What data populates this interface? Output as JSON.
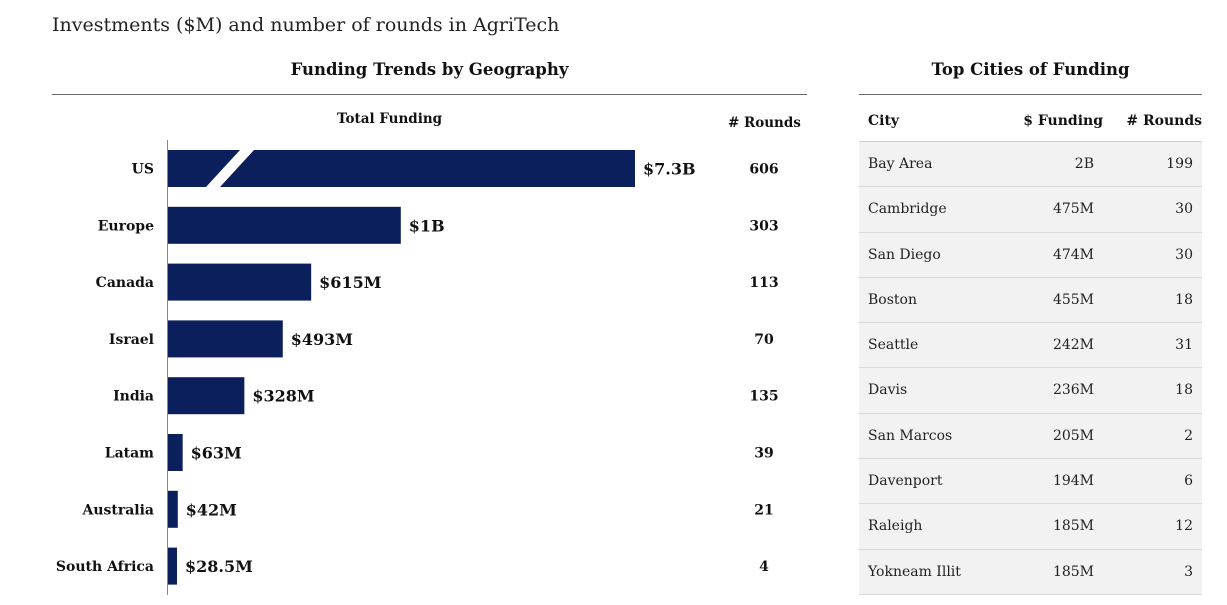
{
  "title": "Investments ($M) and number of rounds in AgriTech",
  "left_panel": {
    "title": "Funding Trends by Geography",
    "col_total": "Total Funding",
    "col_rounds": "# Rounds"
  },
  "right_panel": {
    "title": "Top Cities of Funding",
    "headers": {
      "city": "City",
      "funding": "$ Funding",
      "rounds": "# Rounds"
    },
    "rows": [
      {
        "city": "Bay Area",
        "funding": "2B",
        "rounds": "199"
      },
      {
        "city": "Cambridge",
        "funding": "475M",
        "rounds": "30"
      },
      {
        "city": "San Diego",
        "funding": "474M",
        "rounds": "30"
      },
      {
        "city": "Boston",
        "funding": "455M",
        "rounds": "18"
      },
      {
        "city": "Seattle",
        "funding": "242M",
        "rounds": "31"
      },
      {
        "city": "Davis",
        "funding": "236M",
        "rounds": "18"
      },
      {
        "city": "San Marcos",
        "funding": "205M",
        "rounds": "2"
      },
      {
        "city": "Davenport",
        "funding": "194M",
        "rounds": "6"
      },
      {
        "city": "Raleigh",
        "funding": "185M",
        "rounds": "12"
      },
      {
        "city": "Yokneam Illit",
        "funding": "185M",
        "rounds": "3"
      }
    ]
  },
  "chart_data": {
    "type": "bar",
    "orientation": "horizontal",
    "title": "Funding Trends by Geography",
    "categories": [
      "US",
      "Europe",
      "Canada",
      "Israel",
      "India",
      "Latam",
      "Australia",
      "South Africa"
    ],
    "values": [
      7300,
      1000,
      615,
      493,
      328,
      63,
      42,
      28.5
    ],
    "value_labels": [
      "$7.3B",
      "$1B",
      "$615M",
      "$493M",
      "$328M",
      "$63M",
      "$42M",
      "$28.5M"
    ],
    "rounds": [
      606,
      303,
      113,
      70,
      135,
      39,
      21,
      4
    ],
    "axis_break": true,
    "bar_color": "#0a1f5c",
    "grid": false
  }
}
